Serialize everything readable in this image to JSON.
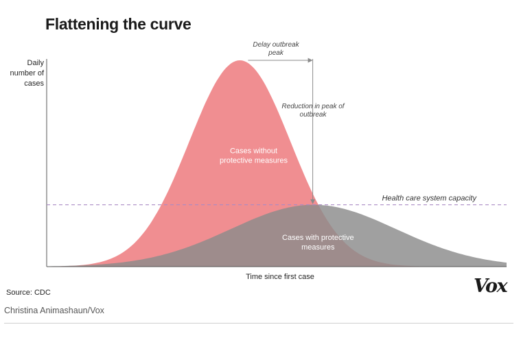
{
  "page": {
    "source": "Source: CDC",
    "credit": "Christina Animashaun/Vox",
    "logo_text": "Vox"
  },
  "chart_data": {
    "type": "area",
    "title": "Flattening the curve",
    "xlabel": "Time since first case",
    "ylabel": "Daily number of cases",
    "ylabel_lines": [
      "Daily",
      "number of",
      "cases"
    ],
    "grid": false,
    "xlim": [
      0,
      100
    ],
    "ylim": [
      0,
      100
    ],
    "series": [
      {
        "name": "Cases without protective measures",
        "label_lines": [
          "Cases without",
          "protective measures"
        ],
        "color": "#ee7e82",
        "opacity": 0.88,
        "peak_x": 42,
        "peak_y": 100,
        "spread_x": 11,
        "label_pos": [
          45,
          55
        ]
      },
      {
        "name": "Cases with protective measures",
        "label_lines": [
          "Cases with protective",
          "measures"
        ],
        "color": "#8b8b8b",
        "opacity": 0.82,
        "peak_x": 58,
        "peak_y": 30,
        "spread_x": 18,
        "label_pos": [
          59,
          13
        ]
      }
    ],
    "capacity_line": {
      "label": "Health care system capacity",
      "y": 30,
      "color": "#a98ac4"
    },
    "annotations": [
      {
        "id": "delay",
        "lines": [
          "Delay outbreak",
          "peak"
        ]
      },
      {
        "id": "reduction",
        "lines": [
          "Reduction in peak of",
          "outbreak"
        ]
      }
    ],
    "colors": {
      "axis": "#555555",
      "annotation_arrow": "#8a8a8a"
    }
  }
}
